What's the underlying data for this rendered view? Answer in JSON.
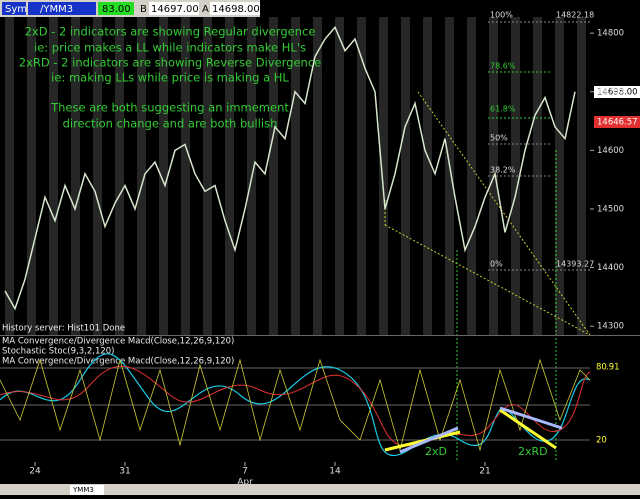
{
  "toolbar": {
    "symbol": "Sym",
    "contract": "/YMM3",
    "last": "83.00",
    "bid_label": "B",
    "bid": "14697.00",
    "ask_label": "A",
    "ask": "14698.00"
  },
  "chart_data": {
    "type": "line",
    "color": "#d6e6cc",
    "categories": [
      null,
      null,
      null,
      "24",
      null,
      null,
      null,
      null,
      null,
      null,
      null,
      null,
      "31",
      null,
      null,
      null,
      null,
      null,
      null,
      null,
      null,
      null,
      null,
      null,
      "7",
      null,
      null,
      null,
      null,
      null,
      null,
      null,
      null,
      "14",
      null,
      null,
      null,
      null,
      null,
      null,
      null,
      null,
      null,
      null,
      null,
      null,
      null,
      null,
      "21",
      null,
      null,
      null,
      null,
      null,
      null,
      null,
      null,
      null
    ],
    "values": [
      14360,
      14330,
      14380,
      14450,
      14520,
      14480,
      14540,
      14500,
      14560,
      14530,
      14470,
      14510,
      14540,
      14500,
      14560,
      14580,
      14540,
      14600,
      14610,
      14560,
      14530,
      14540,
      14480,
      14430,
      14500,
      14580,
      14560,
      14640,
      14620,
      14700,
      14680,
      14760,
      14790,
      14810,
      14770,
      14790,
      14740,
      14700,
      14500,
      14560,
      14640,
      14680,
      14600,
      14560,
      14620,
      14520,
      14430,
      14470,
      14520,
      14560,
      14460,
      14520,
      14600,
      14660,
      14690,
      14640,
      14620,
      14700
    ],
    "ylim": [
      14285,
      14848
    ],
    "yticks": [
      14300,
      14400,
      14500,
      14600,
      14700,
      14800
    ],
    "month_label": "Apr",
    "annotations": [
      "2xD - 2 indicators are showing Regular divergence",
      "ie: price makes a LL while indicators make HL's",
      "2xRD - 2 indicators are showing Reverse Divergence",
      "ie: making LLs while price is making a HL",
      "These are both suggesting an immement",
      "direction change and are both bullish"
    ],
    "fib": {
      "p100": "100%",
      "p100_price": "14822.18",
      "p786": "78.6%",
      "p618": "61.8%",
      "p50": "50%",
      "p382": "38.2%",
      "p0": "0%",
      "p0_price": "14393.27"
    },
    "price_last": "14698.00",
    "price_ma": "14646.57"
  },
  "indicators": {
    "status": "History server: Hist101 Done",
    "macd1": "MA Convergence/Divergence Macd(Close,12,26,9,120)",
    "stoch": "Stochastic Stoc(9,3,2,120)",
    "macd2": "MA Convergence/Divergence Macd(Close,12,26,9,120)",
    "level_high": "80",
    "level_high_value": ".91",
    "level_low": "20",
    "div1": "2xD",
    "div2": "2xRD"
  },
  "tabs": {
    "active": "YMM3"
  }
}
